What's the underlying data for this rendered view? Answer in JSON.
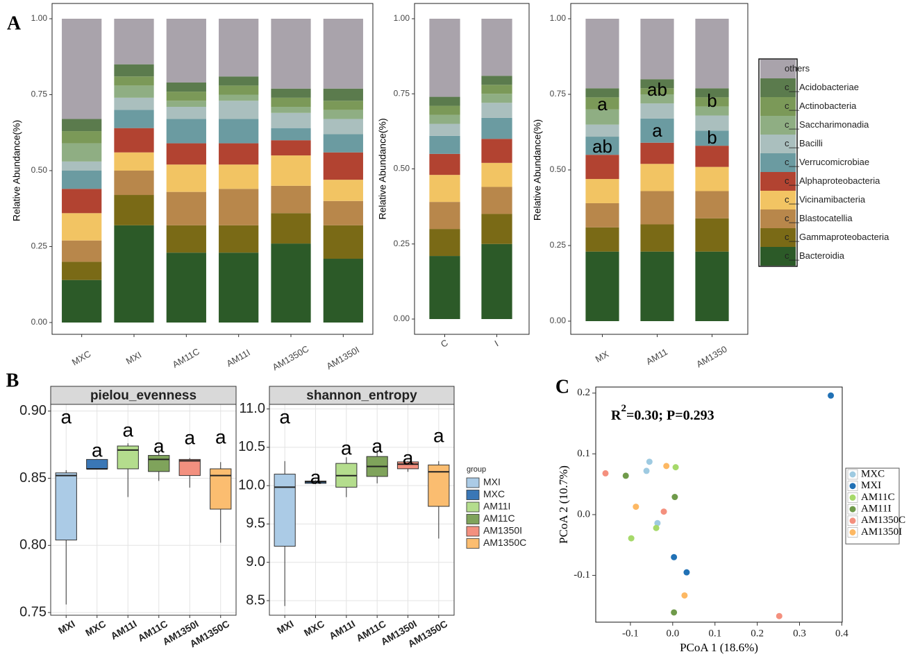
{
  "chart_data": [
    {
      "type": "stacked_bar",
      "panel_label": "A",
      "y_label": "Relative Abundance(%)",
      "categories": [
        "MXC",
        "MXI",
        "AM11C",
        "AM11I",
        "AM1350C",
        "AM1350I"
      ],
      "ylim": [
        0,
        1
      ],
      "yticks": [
        {
          "value": 0,
          "label": "0.00"
        },
        {
          "value": 0.25,
          "label": "0.25"
        },
        {
          "value": 0.5,
          "label": "0.50"
        },
        {
          "value": 0.75,
          "label": "0.75"
        },
        {
          "value": 1,
          "label": "1.00"
        }
      ],
      "series": [
        {
          "name": "c__Bacteroidia",
          "color": "#2c5a28",
          "values": [
            0.14,
            0.32,
            0.23,
            0.23,
            0.26,
            0.21
          ]
        },
        {
          "name": "c__Gammaproteobacteria",
          "color": "#7a6a16",
          "values": [
            0.06,
            0.1,
            0.09,
            0.09,
            0.1,
            0.11
          ]
        },
        {
          "name": "c__Blastocatellia",
          "color": "#b8874b",
          "values": [
            0.07,
            0.08,
            0.11,
            0.12,
            0.09,
            0.08
          ]
        },
        {
          "name": "c__Vicinamibacteria",
          "color": "#f2c463",
          "values": [
            0.09,
            0.06,
            0.09,
            0.08,
            0.1,
            0.07
          ]
        },
        {
          "name": "c__Alphaproteobacteria",
          "color": "#b24331",
          "values": [
            0.08,
            0.08,
            0.07,
            0.07,
            0.05,
            0.09
          ]
        },
        {
          "name": "c__Verrucomicrobiae",
          "color": "#6b9ba1",
          "values": [
            0.06,
            0.06,
            0.08,
            0.08,
            0.04,
            0.06
          ]
        },
        {
          "name": "c__Bacilli",
          "color": "#aabfbe",
          "values": [
            0.03,
            0.04,
            0.04,
            0.06,
            0.05,
            0.05
          ]
        },
        {
          "name": "c__Saccharimonadia",
          "color": "#8fae83",
          "values": [
            0.06,
            0.04,
            0.02,
            0.02,
            0.02,
            0.03
          ]
        },
        {
          "name": "c__Actinobacteria",
          "color": "#7b9958",
          "values": [
            0.04,
            0.03,
            0.03,
            0.03,
            0.03,
            0.03
          ]
        },
        {
          "name": "c__Acidobacteriae",
          "color": "#5b7b4d",
          "values": [
            0.04,
            0.04,
            0.03,
            0.03,
            0.03,
            0.04
          ]
        },
        {
          "name": "others",
          "color": "#a9a3ab",
          "values": [
            0.33,
            0.15,
            0.21,
            0.19,
            0.23,
            0.23
          ]
        }
      ]
    },
    {
      "type": "stacked_bar",
      "y_label": "Relative Abundance(%)",
      "categories": [
        "C",
        "I"
      ],
      "ylim": [
        0,
        1
      ],
      "yticks": [
        {
          "value": 0,
          "label": "0.00"
        },
        {
          "value": 0.25,
          "label": "0.25"
        },
        {
          "value": 0.5,
          "label": "0.50"
        },
        {
          "value": 0.75,
          "label": "0.75"
        },
        {
          "value": 1,
          "label": "1.00"
        }
      ],
      "series": [
        {
          "name": "c__Bacteroidia",
          "color": "#2c5a28",
          "values": [
            0.21,
            0.25
          ]
        },
        {
          "name": "c__Gammaproteobacteria",
          "color": "#7a6a16",
          "values": [
            0.09,
            0.1
          ]
        },
        {
          "name": "c__Blastocatellia",
          "color": "#b8874b",
          "values": [
            0.09,
            0.09
          ]
        },
        {
          "name": "c__Vicinamibacteria",
          "color": "#f2c463",
          "values": [
            0.09,
            0.08
          ]
        },
        {
          "name": "c__Alphaproteobacteria",
          "color": "#b24331",
          "values": [
            0.07,
            0.08
          ]
        },
        {
          "name": "c__Verrucomicrobiae",
          "color": "#6b9ba1",
          "values": [
            0.06,
            0.07
          ]
        },
        {
          "name": "c__Bacilli",
          "color": "#aabfbe",
          "values": [
            0.04,
            0.05
          ]
        },
        {
          "name": "c__Saccharimonadia",
          "color": "#8fae83",
          "values": [
            0.03,
            0.03
          ]
        },
        {
          "name": "c__Actinobacteria",
          "color": "#7b9958",
          "values": [
            0.03,
            0.03
          ]
        },
        {
          "name": "c__Acidobacteriae",
          "color": "#5b7b4d",
          "values": [
            0.03,
            0.03
          ]
        },
        {
          "name": "others",
          "color": "#a9a3ab",
          "values": [
            0.26,
            0.19
          ]
        }
      ]
    },
    {
      "type": "stacked_bar",
      "y_label": "Relative Abundance(%)",
      "legend": "right",
      "categories": [
        "MX",
        "AM11",
        "AM1350"
      ],
      "ylim": [
        0,
        1
      ],
      "yticks": [
        {
          "value": 0,
          "label": "0.00"
        },
        {
          "value": 0.25,
          "label": "0.25"
        },
        {
          "value": 0.5,
          "label": "0.50"
        },
        {
          "value": 0.75,
          "label": "0.75"
        },
        {
          "value": 1,
          "label": "1.00"
        }
      ],
      "annotations": [
        "a",
        "ab",
        "ab",
        "a",
        "b",
        "b"
      ],
      "series": [
        {
          "name": "c__Bacteroidia",
          "color": "#2c5a28",
          "values": [
            0.23,
            0.23,
            0.23
          ]
        },
        {
          "name": "c__Gammaproteobacteria",
          "color": "#7a6a16",
          "values": [
            0.08,
            0.09,
            0.11
          ]
        },
        {
          "name": "c__Blastocatellia",
          "color": "#b8874b",
          "values": [
            0.08,
            0.11,
            0.09
          ]
        },
        {
          "name": "c__Vicinamibacteria",
          "color": "#f2c463",
          "values": [
            0.08,
            0.09,
            0.08
          ]
        },
        {
          "name": "c__Alphaproteobacteria",
          "color": "#b24331",
          "values": [
            0.08,
            0.07,
            0.07
          ]
        },
        {
          "name": "c__Verrucomicrobiae",
          "color": "#6b9ba1",
          "values": [
            0.06,
            0.08,
            0.05
          ]
        },
        {
          "name": "c__Bacilli",
          "color": "#aabfbe",
          "values": [
            0.04,
            0.05,
            0.05
          ]
        },
        {
          "name": "c__Saccharimonadia",
          "color": "#8fae83",
          "values": [
            0.05,
            0.03,
            0.03
          ]
        },
        {
          "name": "c__Actinobacteria",
          "color": "#7b9958",
          "values": [
            0.04,
            0.02,
            0.03
          ]
        },
        {
          "name": "c__Acidobacteriae",
          "color": "#5b7b4d",
          "values": [
            0.03,
            0.03,
            0.03
          ]
        },
        {
          "name": "others",
          "color": "#a9a3ab",
          "values": [
            0.23,
            0.2,
            0.23
          ]
        }
      ]
    },
    {
      "type": "box",
      "panel_label": "B",
      "facet_title": "pielou_evenness",
      "grid": true,
      "categories": [
        "MXI",
        "MXC",
        "AM11I",
        "AM11C",
        "AM1350I",
        "AM1350C"
      ],
      "colors": [
        "#abcbe6",
        "#3a77b6",
        "#b4dd8d",
        "#7fa35b",
        "#f3907f",
        "#fbbd70"
      ],
      "boxes": [
        {
          "min": 0.756,
          "q1": 0.804,
          "median": 0.852,
          "q3": 0.854,
          "max": 0.856
        },
        {
          "min": 0.857,
          "q1": 0.857,
          "median": 0.857,
          "q3": 0.864,
          "max": 0.864
        },
        {
          "min": 0.836,
          "q1": 0.857,
          "median": 0.871,
          "q3": 0.874,
          "max": 0.876
        },
        {
          "min": 0.848,
          "q1": 0.855,
          "median": 0.864,
          "q3": 0.867,
          "max": 0.871
        },
        {
          "min": 0.843,
          "q1": 0.852,
          "median": 0.863,
          "q3": 0.864,
          "max": 0.865
        },
        {
          "min": 0.802,
          "q1": 0.827,
          "median": 0.852,
          "q3": 0.857,
          "max": 0.862
        }
      ],
      "letters": [
        "a",
        "a",
        "a",
        "a",
        "a",
        "a"
      ],
      "ylim": [
        0.748,
        0.905
      ],
      "yticks": [
        0.75,
        {
          "value": 0.8,
          "label": "0.80"
        },
        0.85,
        {
          "value": 0.9,
          "label": "0.90"
        }
      ]
    },
    {
      "type": "box",
      "facet_title": "shannon_entropy",
      "grid": true,
      "legend": "right",
      "legend_title": "group",
      "categories": [
        "MXI",
        "MXC",
        "AM11I",
        "AM11C",
        "AM1350I",
        "AM1350C"
      ],
      "colors": [
        "#abcbe6",
        "#3a77b6",
        "#b4dd8d",
        "#7fa35b",
        "#f3907f",
        "#fbbd70"
      ],
      "boxes": [
        {
          "min": 8.43,
          "q1": 9.21,
          "median": 9.98,
          "q3": 10.15,
          "max": 10.32
        },
        {
          "min": 10.02,
          "q1": 10.03,
          "median": 10.05,
          "q3": 10.06,
          "max": 10.07
        },
        {
          "min": 9.85,
          "q1": 9.98,
          "median": 10.13,
          "q3": 10.29,
          "max": 10.37
        },
        {
          "min": 10.03,
          "q1": 10.12,
          "median": 10.25,
          "q3": 10.38,
          "max": 10.47
        },
        {
          "min": 10.18,
          "q1": 10.22,
          "median": 10.28,
          "q3": 10.31,
          "max": 10.32
        },
        {
          "min": 9.31,
          "q1": 9.73,
          "median": 10.18,
          "q3": 10.27,
          "max": 10.32
        }
      ],
      "letters": [
        "a",
        "a",
        "a",
        "a",
        "a",
        "a"
      ],
      "ylim": [
        8.31,
        11.06
      ],
      "yticks": [
        8.5,
        {
          "value": 9,
          "label": "9.0"
        },
        9.5,
        {
          "value": 10,
          "label": "10.0"
        },
        10.5,
        {
          "value": 11,
          "label": "11.0"
        }
      ]
    },
    {
      "type": "scatter",
      "panel_label": "C",
      "legend": "right",
      "x_label": "PCoA 1 (18.6%)",
      "y_label": "PCoA 2 (10.7%)",
      "annotation": {
        "base": "R",
        "sup": "2",
        "rest": "=0.30; P=0.293"
      },
      "xlim": [
        -0.182,
        0.401
      ],
      "ylim": [
        -0.177,
        0.21
      ],
      "xticks": [
        -0.1,
        {
          "value": 0,
          "label": "0.0"
        },
        0.1,
        0.2,
        0.3,
        0.4
      ],
      "yticks": [
        -0.1,
        {
          "value": 0,
          "label": "0.0"
        },
        0.1,
        0.2
      ],
      "series": [
        {
          "name": "MXC",
          "color": "#9ecae1",
          "x": [
            -0.055,
            -0.062,
            -0.036
          ],
          "values": [
            0.087,
            0.072,
            -0.014
          ]
        },
        {
          "name": "MXI",
          "color": "#2171b5",
          "x": [
            0.374,
            0.003,
            0.033
          ],
          "values": [
            0.196,
            -0.07,
            -0.095
          ]
        },
        {
          "name": "AM11C",
          "color": "#a6d96a",
          "x": [
            0.007,
            -0.039,
            -0.098
          ],
          "values": [
            0.078,
            -0.022,
            -0.039
          ]
        },
        {
          "name": "AM11I",
          "color": "#6f9a4a",
          "x": [
            -0.111,
            0.005,
            0.003
          ],
          "values": [
            0.064,
            0.029,
            -0.161
          ]
        },
        {
          "name": "AM1350C",
          "color": "#f4907e",
          "x": [
            -0.159,
            -0.021,
            0.252
          ],
          "values": [
            0.068,
            0.005,
            -0.167
          ]
        },
        {
          "name": "AM1350I",
          "color": "#fdb863",
          "x": [
            -0.015,
            -0.087,
            0.028
          ],
          "values": [
            0.08,
            0.013,
            -0.133
          ]
        }
      ]
    }
  ]
}
